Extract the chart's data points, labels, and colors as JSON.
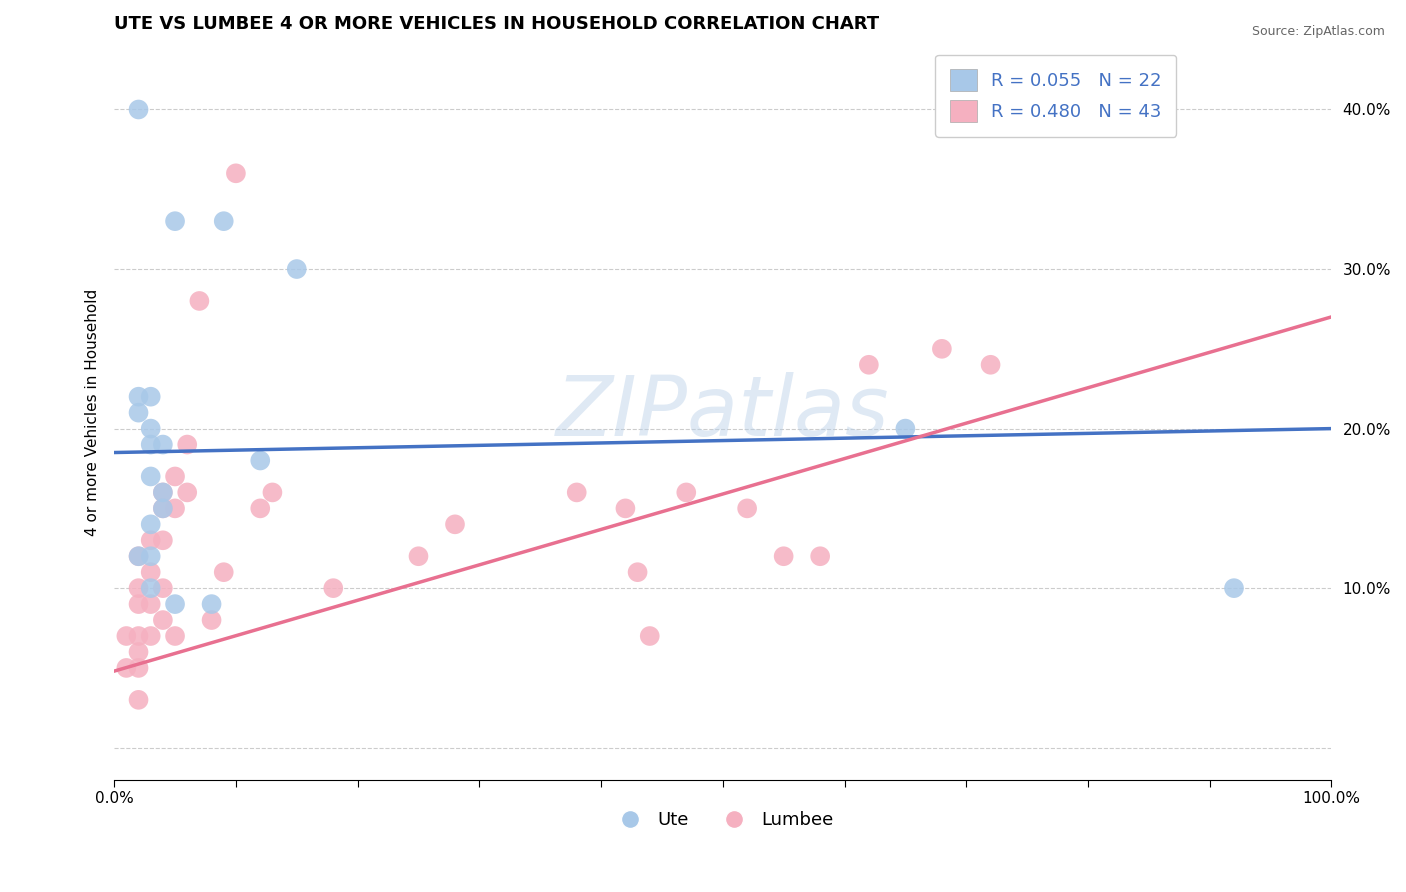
{
  "title": "UTE VS LUMBEE 4 OR MORE VEHICLES IN HOUSEHOLD CORRELATION CHART",
  "source": "Source: ZipAtlas.com",
  "ylabel": "4 or more Vehicles in Household",
  "xlabel": "",
  "watermark": "ZIPatlas",
  "xlim": [
    0.0,
    1.0
  ],
  "ylim": [
    -0.02,
    0.44
  ],
  "xticks": [
    0.0,
    0.1,
    0.2,
    0.3,
    0.4,
    0.5,
    0.6,
    0.7,
    0.8,
    0.9,
    1.0
  ],
  "xtick_labels": [
    "0.0%",
    "",
    "",
    "",
    "",
    "",
    "",
    "",
    "",
    "",
    "100.0%"
  ],
  "yticks": [
    0.0,
    0.1,
    0.2,
    0.3,
    0.4
  ],
  "ytick_labels": [
    "",
    "10.0%",
    "20.0%",
    "30.0%",
    "40.0%"
  ],
  "ute_color": "#a8c8e8",
  "lumbee_color": "#f5b0c0",
  "ute_line_color": "#4472c4",
  "lumbee_line_color": "#e87090",
  "legend_ute_label": "R = 0.055   N = 22",
  "legend_lumbee_label": "R = 0.480   N = 43",
  "legend_ute_label2": "Ute",
  "legend_lumbee_label2": "Lumbee",
  "ute_R": 0.055,
  "ute_N": 22,
  "lumbee_R": 0.48,
  "lumbee_N": 43,
  "ute_scatter_x": [
    0.02,
    0.05,
    0.09,
    0.02,
    0.02,
    0.03,
    0.03,
    0.03,
    0.04,
    0.03,
    0.04,
    0.04,
    0.05,
    0.08,
    0.12,
    0.65,
    0.92,
    0.03,
    0.03,
    0.02,
    0.03,
    0.15
  ],
  "ute_scatter_y": [
    0.4,
    0.33,
    0.33,
    0.22,
    0.21,
    0.22,
    0.2,
    0.19,
    0.19,
    0.17,
    0.16,
    0.15,
    0.09,
    0.09,
    0.18,
    0.2,
    0.1,
    0.14,
    0.12,
    0.12,
    0.1,
    0.3
  ],
  "lumbee_scatter_x": [
    0.01,
    0.01,
    0.02,
    0.02,
    0.02,
    0.02,
    0.02,
    0.02,
    0.02,
    0.03,
    0.03,
    0.03,
    0.03,
    0.04,
    0.04,
    0.04,
    0.04,
    0.04,
    0.05,
    0.05,
    0.05,
    0.06,
    0.06,
    0.07,
    0.08,
    0.1,
    0.12,
    0.13,
    0.18,
    0.25,
    0.28,
    0.38,
    0.42,
    0.44,
    0.47,
    0.52,
    0.55,
    0.58,
    0.62,
    0.68,
    0.72,
    0.43,
    0.09
  ],
  "lumbee_scatter_y": [
    0.07,
    0.05,
    0.12,
    0.1,
    0.09,
    0.07,
    0.06,
    0.05,
    0.03,
    0.13,
    0.11,
    0.09,
    0.07,
    0.16,
    0.15,
    0.13,
    0.1,
    0.08,
    0.17,
    0.15,
    0.07,
    0.19,
    0.16,
    0.28,
    0.08,
    0.36,
    0.15,
    0.16,
    0.1,
    0.12,
    0.14,
    0.16,
    0.15,
    0.07,
    0.16,
    0.15,
    0.12,
    0.12,
    0.24,
    0.25,
    0.24,
    0.11,
    0.11
  ],
  "grid_color": "#cccccc",
  "background_color": "#ffffff",
  "title_fontsize": 13,
  "axis_fontsize": 11,
  "tick_fontsize": 11,
  "legend_fontsize": 13
}
